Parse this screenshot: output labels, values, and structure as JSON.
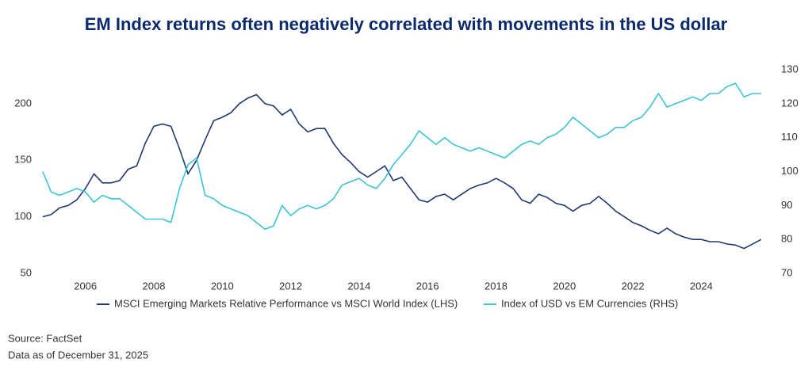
{
  "chart_data": {
    "type": "line",
    "title": "EM Index returns often negatively correlated with movements in the US dollar",
    "x": [
      2004.75,
      2005,
      2005.25,
      2005.5,
      2005.75,
      2006,
      2006.25,
      2006.5,
      2006.75,
      2007,
      2007.25,
      2007.5,
      2007.75,
      2008,
      2008.25,
      2008.5,
      2008.75,
      2009,
      2009.25,
      2009.5,
      2009.75,
      2010,
      2010.25,
      2010.5,
      2010.75,
      2011,
      2011.25,
      2011.5,
      2011.75,
      2012,
      2012.25,
      2012.5,
      2012.75,
      2013,
      2013.25,
      2013.5,
      2013.75,
      2014,
      2014.25,
      2014.5,
      2014.75,
      2015,
      2015.25,
      2015.5,
      2015.75,
      2016,
      2016.25,
      2016.5,
      2016.75,
      2017,
      2017.25,
      2017.5,
      2017.75,
      2018,
      2018.25,
      2018.5,
      2018.75,
      2019,
      2019.25,
      2019.5,
      2019.75,
      2020,
      2020.25,
      2020.5,
      2020.75,
      2021,
      2021.25,
      2021.5,
      2021.75,
      2022,
      2022.25,
      2022.5,
      2022.75,
      2023,
      2023.25,
      2023.5,
      2023.75,
      2024,
      2024.25,
      2024.5,
      2024.75,
      2025,
      2025.25,
      2025.5,
      2025.75
    ],
    "xlim": [
      2004.7,
      2026.1
    ],
    "xticks": [
      2006,
      2008,
      2010,
      2012,
      2014,
      2016,
      2018,
      2020,
      2022,
      2024
    ],
    "ylim": [
      50,
      230
    ],
    "yticks": [
      50,
      100,
      150,
      200
    ],
    "y2lim": [
      70,
      130
    ],
    "y2ticks": [
      70,
      80,
      90,
      100,
      110,
      120,
      130
    ],
    "grid": false,
    "legend": "bottom",
    "series": [
      {
        "name": "MSCI Emerging Markets Relative Performance vs MSCI World Index (LHS)",
        "color": "#1f3a6e",
        "axis": "y",
        "values": [
          100,
          102,
          108,
          110,
          115,
          125,
          138,
          130,
          130,
          132,
          142,
          145,
          165,
          180,
          182,
          180,
          160,
          138,
          150,
          168,
          185,
          188,
          192,
          200,
          205,
          208,
          200,
          198,
          190,
          195,
          182,
          175,
          178,
          178,
          165,
          155,
          148,
          140,
          135,
          140,
          145,
          132,
          135,
          125,
          115,
          113,
          118,
          120,
          115,
          120,
          125,
          128,
          130,
          134,
          130,
          125,
          115,
          112,
          120,
          117,
          112,
          110,
          105,
          110,
          112,
          118,
          112,
          105,
          100,
          95,
          92,
          88,
          85,
          90,
          85,
          82,
          80,
          80,
          78,
          78,
          76,
          75,
          72,
          76,
          80
        ]
      },
      {
        "name": "Index of USD vs EM Currencies (RHS)",
        "color": "#3cc3d6",
        "axis": "y2",
        "values": [
          100,
          94,
          93,
          94,
          95,
          94,
          91,
          93,
          92,
          92,
          90,
          88,
          86,
          86,
          86,
          85,
          95,
          102,
          104,
          93,
          92,
          90,
          89,
          88,
          87,
          85,
          83,
          84,
          90,
          87,
          89,
          90,
          89,
          90,
          92,
          96,
          97,
          98,
          96,
          95,
          98,
          102,
          105,
          108,
          112,
          110,
          108,
          110,
          108,
          107,
          106,
          107,
          106,
          105,
          104,
          106,
          108,
          109,
          108,
          110,
          111,
          113,
          116,
          114,
          112,
          110,
          111,
          113,
          113,
          115,
          116,
          119,
          123,
          119,
          120,
          121,
          122,
          121,
          123,
          123,
          125,
          126,
          122,
          123,
          123
        ]
      }
    ],
    "source": "Source: FactSet",
    "note": "Data as of December 31, 2025"
  }
}
